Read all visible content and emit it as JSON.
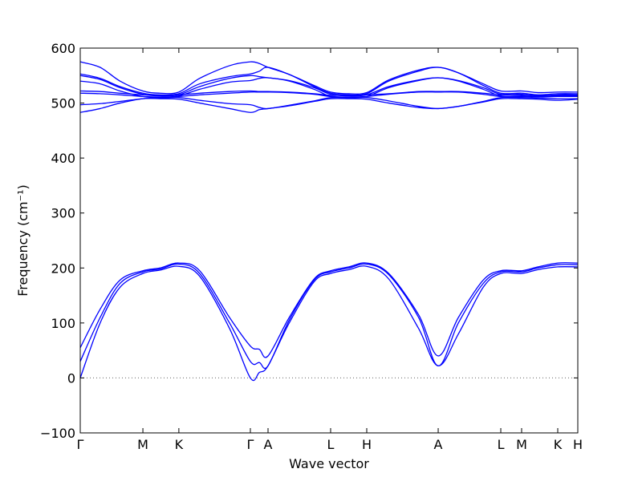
{
  "chart_data": {
    "type": "line",
    "title": "",
    "xlabel": "Wave vector",
    "ylabel": "Frequency (cm⁻¹)",
    "ylim": [
      -100,
      600
    ],
    "yticks": [
      -100,
      0,
      100,
      200,
      300,
      400,
      500,
      600
    ],
    "xlim": [
      0,
      10
    ],
    "high_symmetry_points": [
      {
        "label": "Γ",
        "x": 0
      },
      {
        "label": "M",
        "x": 1.259
      },
      {
        "label": "K",
        "x": 1.982
      },
      {
        "label": "Γ",
        "x": 3.419
      },
      {
        "label": "A",
        "x": 3.774
      },
      {
        "label": "L",
        "x": 5.032
      },
      {
        "label": "H",
        "x": 5.758
      },
      {
        "label": "A",
        "x": 7.194
      },
      {
        "label": "L",
        "x": 8.452
      },
      {
        "label": "M",
        "x": 8.871
      },
      {
        "label": "K",
        "x": 9.597
      },
      {
        "label": "H",
        "x": 10.0
      }
    ],
    "zero_line": true,
    "line_color": "#0000ff",
    "series": [
      {
        "x": [
          0,
          0.4,
          0.8,
          1.259,
          1.6,
          1.982,
          2.4,
          3.0,
          3.419,
          3.6,
          3.774,
          4.2,
          4.7,
          5.032,
          5.4,
          5.758,
          6.2,
          6.8,
          7.194,
          7.6,
          8.1,
          8.452,
          8.871,
          9.2,
          9.597,
          10.0
        ],
        "y": [
          0,
          100,
          165,
          190,
          196,
          203,
          185,
          90,
          0,
          10,
          22,
          100,
          175,
          190,
          197,
          203,
          180,
          90,
          22,
          80,
          165,
          190,
          190,
          197,
          202,
          202
        ]
      },
      {
        "x": [
          0,
          0.4,
          0.8,
          1.259,
          1.6,
          1.982,
          2.4,
          3.0,
          3.419,
          3.6,
          3.774,
          4.2,
          4.7,
          5.032,
          5.4,
          5.758,
          6.2,
          6.8,
          7.194,
          7.6,
          8.1,
          8.452,
          8.871,
          9.2,
          9.597,
          10.0
        ],
        "y": [
          30,
          110,
          172,
          193,
          198,
          207,
          190,
          100,
          30,
          28,
          22,
          105,
          178,
          193,
          200,
          207,
          188,
          110,
          22,
          100,
          172,
          193,
          193,
          200,
          206,
          206
        ]
      },
      {
        "x": [
          0,
          0.4,
          0.8,
          1.259,
          1.6,
          1.982,
          2.4,
          3.0,
          3.419,
          3.6,
          3.774,
          4.2,
          4.7,
          5.032,
          5.4,
          5.758,
          6.2,
          6.8,
          7.194,
          7.6,
          8.1,
          8.452,
          8.871,
          9.2,
          9.597,
          10.0
        ],
        "y": [
          55,
          125,
          178,
          195,
          200,
          209,
          195,
          110,
          58,
          52,
          40,
          110,
          180,
          195,
          202,
          209,
          190,
          115,
          40,
          110,
          178,
          195,
          195,
          202,
          209,
          209
        ]
      },
      {
        "x": [
          0,
          0.4,
          0.8,
          1.259,
          1.6,
          1.982,
          2.4,
          3.0,
          3.419,
          3.6,
          3.774,
          4.2,
          4.7,
          5.032,
          5.4,
          5.758,
          6.2,
          6.8,
          7.194,
          7.6,
          8.1,
          8.452,
          8.871,
          9.2,
          9.597,
          10.0
        ],
        "y": [
          483,
          490,
          500,
          508,
          508,
          507,
          500,
          490,
          483,
          488,
          490,
          495,
          503,
          508,
          508,
          507,
          500,
          492,
          490,
          494,
          502,
          508,
          508,
          507,
          505,
          507
        ]
      },
      {
        "x": [
          0,
          0.4,
          0.8,
          1.259,
          1.6,
          1.982,
          2.4,
          3.0,
          3.419,
          3.6,
          3.774,
          4.2,
          4.7,
          5.032,
          5.4,
          5.758,
          6.2,
          6.8,
          7.194,
          7.6,
          8.1,
          8.452,
          8.871,
          9.2,
          9.597,
          10.0
        ],
        "y": [
          497,
          499,
          503,
          508,
          509,
          510,
          505,
          499,
          497,
          492,
          490,
          496,
          504,
          510,
          510,
          510,
          504,
          494,
          490,
          494,
          503,
          510,
          510,
          509,
          508,
          508
        ]
      },
      {
        "x": [
          0,
          0.4,
          0.8,
          1.259,
          1.6,
          1.982,
          2.4,
          3.0,
          3.419,
          3.6,
          3.774,
          4.2,
          4.7,
          5.032,
          5.4,
          5.758,
          6.2,
          6.8,
          7.194,
          7.6,
          8.1,
          8.452,
          8.871,
          9.2,
          9.597,
          10.0
        ],
        "y": [
          518,
          517,
          515,
          512,
          511,
          512,
          515,
          518,
          520,
          520,
          520,
          519,
          516,
          512,
          511,
          512,
          516,
          520,
          520,
          520,
          516,
          512,
          512,
          511,
          512,
          512
        ]
      },
      {
        "x": [
          0,
          0.4,
          0.8,
          1.259,
          1.6,
          1.982,
          2.4,
          3.0,
          3.419,
          3.6,
          3.774,
          4.2,
          4.7,
          5.032,
          5.4,
          5.758,
          6.2,
          6.8,
          7.194,
          7.6,
          8.1,
          8.452,
          8.871,
          9.2,
          9.597,
          10.0
        ],
        "y": [
          522,
          521,
          518,
          515,
          514,
          515,
          518,
          521,
          522,
          521,
          521,
          520,
          517,
          514,
          514,
          515,
          517,
          521,
          521,
          521,
          518,
          515,
          515,
          514,
          514,
          514
        ]
      },
      {
        "x": [
          0,
          0.4,
          0.8,
          1.259,
          1.6,
          1.982,
          2.4,
          3.0,
          3.419,
          3.6,
          3.774,
          4.2,
          4.7,
          5.032,
          5.4,
          5.758,
          6.2,
          6.8,
          7.194,
          7.6,
          8.1,
          8.452,
          8.871,
          9.2,
          9.597,
          10.0
        ],
        "y": [
          540,
          535,
          522,
          512,
          510,
          513,
          525,
          538,
          541,
          545,
          546,
          540,
          525,
          512,
          510,
          512,
          528,
          541,
          546,
          540,
          525,
          513,
          513,
          512,
          513,
          513
        ]
      },
      {
        "x": [
          0,
          0.4,
          0.8,
          1.259,
          1.6,
          1.982,
          2.4,
          3.0,
          3.419,
          3.6,
          3.774,
          4.2,
          4.7,
          5.032,
          5.4,
          5.758,
          6.2,
          6.8,
          7.194,
          7.6,
          8.1,
          8.452,
          8.871,
          9.2,
          9.597,
          10.0
        ],
        "y": [
          550,
          543,
          528,
          516,
          513,
          515,
          530,
          545,
          550,
          548,
          546,
          541,
          528,
          516,
          513,
          515,
          530,
          542,
          546,
          541,
          528,
          516,
          516,
          513,
          515,
          515
        ]
      },
      {
        "x": [
          0,
          0.4,
          0.8,
          1.259,
          1.6,
          1.982,
          2.4,
          3.0,
          3.419,
          3.6,
          3.774,
          4.2,
          4.7,
          5.032,
          5.4,
          5.758,
          6.2,
          6.8,
          7.194,
          7.6,
          8.1,
          8.452,
          8.871,
          9.2,
          9.597,
          10.0
        ],
        "y": [
          553,
          545,
          530,
          518,
          515,
          517,
          535,
          548,
          553,
          558,
          565,
          552,
          530,
          518,
          515,
          517,
          540,
          558,
          565,
          555,
          532,
          518,
          518,
          515,
          517,
          517
        ]
      },
      {
        "x": [
          0,
          0.4,
          0.8,
          1.259,
          1.6,
          1.982,
          2.4,
          3.0,
          3.419,
          3.6,
          3.774,
          4.2,
          4.7,
          5.032,
          5.4,
          5.758,
          6.2,
          6.8,
          7.194,
          7.6,
          8.1,
          8.452,
          8.871,
          9.2,
          9.597,
          10.0
        ],
        "y": [
          575,
          565,
          540,
          522,
          518,
          520,
          545,
          568,
          575,
          572,
          565,
          552,
          532,
          520,
          517,
          519,
          542,
          560,
          565,
          555,
          535,
          522,
          522,
          519,
          520,
          520
        ]
      }
    ]
  }
}
